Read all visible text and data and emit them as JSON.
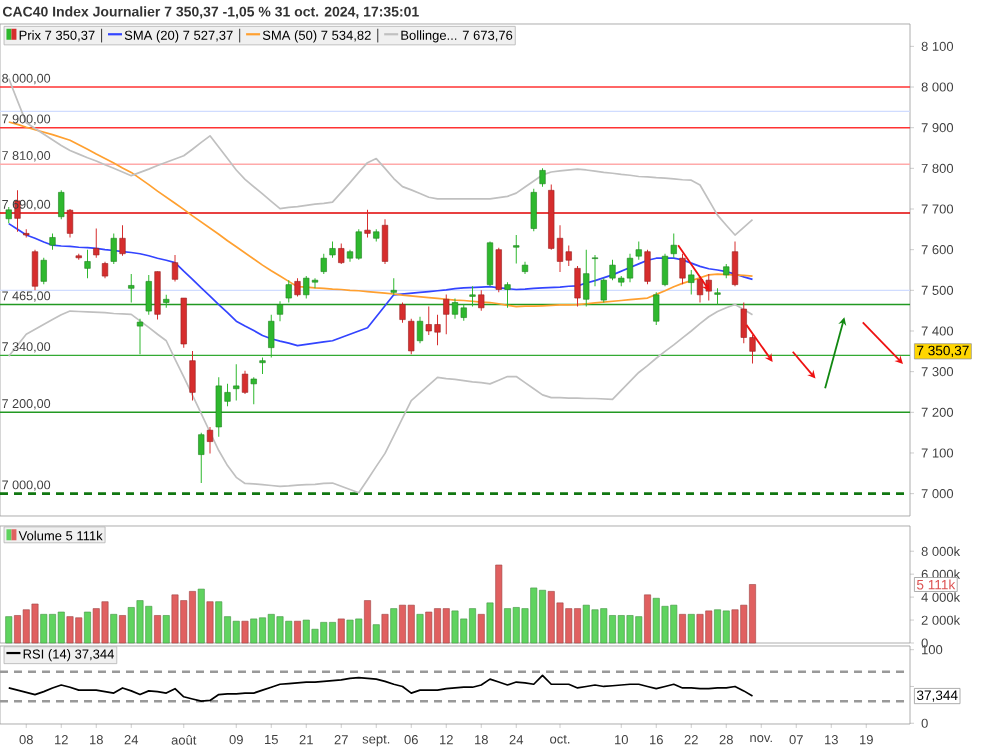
{
  "chart_data": [
    {
      "type": "candlestick",
      "title": "CAC40 Index Journalier 7 350,37 -1,05 % 31 oct. 2024, 17:35:01",
      "legend": "top left",
      "tick_labels": "y",
      "ylim": [
        6945,
        8155
      ],
      "yticks": [
        {
          "value": 7000,
          "label": "7 000"
        },
        {
          "value": 7100,
          "label": "7 100"
        },
        {
          "value": 7200,
          "label": "7 200"
        },
        {
          "value": 7300,
          "label": "7 300"
        },
        {
          "value": 7400,
          "label": "7 400"
        },
        {
          "value": 7500,
          "label": "7 500"
        },
        {
          "value": 7600,
          "label": "7 600"
        },
        {
          "value": 7700,
          "label": "7 700"
        },
        {
          "value": 7800,
          "label": "7 800"
        },
        {
          "value": 7900,
          "label": "7 900"
        },
        {
          "value": 8000,
          "label": "8 000"
        },
        {
          "value": 8100,
          "label": "8 100"
        }
      ],
      "categories": [
        null,
        null,
        null,
        null,
        null,
        null,
        null,
        null,
        null,
        null,
        null,
        null,
        null,
        null,
        null,
        null,
        null,
        null,
        null,
        null,
        null,
        null,
        null,
        null,
        null,
        null,
        null,
        null,
        null,
        null,
        null,
        null,
        null,
        null,
        null,
        null,
        null,
        null,
        null,
        null,
        null,
        null,
        null,
        null,
        null,
        null,
        null,
        null,
        null,
        null,
        null,
        null,
        null,
        null,
        null,
        null,
        null,
        null,
        null,
        null,
        null,
        null,
        null,
        null,
        null,
        null,
        null,
        null,
        null,
        null,
        null,
        null,
        null,
        null,
        null,
        null,
        null,
        null,
        null,
        null,
        null,
        null,
        null,
        null,
        null,
        null,
        null,
        null,
        null,
        null,
        null,
        null,
        null,
        null,
        null,
        null,
        null,
        null,
        null,
        null,
        null,
        null,
        null
      ],
      "series": [
        {
          "type": "candlestick",
          "name": "Prix 7 350,37",
          "ohlc": [
            [
              7676,
              7705,
              7665,
              7698
            ],
            [
              7720,
              7746,
              7644,
              7677
            ],
            [
              7640,
              7650,
              7630,
              7636
            ],
            [
              7595,
              7600,
              7500,
              7510
            ],
            [
              7522,
              7580,
              7515,
              7574
            ],
            [
              7611,
              7640,
              7600,
              7630
            ],
            [
              7681,
              7746,
              7675,
              7741
            ],
            [
              7697,
              7700,
              7630,
              7640
            ],
            [
              7585,
              7590,
              7575,
              7580
            ],
            [
              7554,
              7600,
              7530,
              7571
            ],
            [
              7603,
              7652,
              7580,
              7587
            ],
            [
              7566,
              7570,
              7530,
              7535
            ],
            [
              7571,
              7640,
              7565,
              7628
            ],
            [
              7628,
              7660,
              7585,
              7590
            ],
            [
              7505,
              7540,
              7470,
              7512
            ],
            [
              7412,
              7430,
              7343,
              7422
            ],
            [
              7449,
              7538,
              7440,
              7522
            ],
            [
              7546,
              7546,
              7428,
              7441
            ],
            [
              7470,
              7489,
              7457,
              7478
            ],
            [
              7568,
              7587,
              7522,
              7527
            ],
            [
              7481,
              7481,
              7359,
              7368
            ],
            [
              7327,
              7351,
              7229,
              7249
            ],
            [
              7096,
              7150,
              7026,
              7145
            ],
            [
              7156,
              7164,
              7099,
              7128
            ],
            [
              7164,
              7286,
              7140,
              7265
            ],
            [
              7227,
              7270,
              7215,
              7249
            ],
            [
              7258,
              7318,
              7229,
              7265
            ],
            [
              7294,
              7302,
              7245,
              7249
            ],
            [
              7270,
              7286,
              7220,
              7282
            ],
            [
              7322,
              7335,
              7294,
              7327
            ],
            [
              7359,
              7440,
              7335,
              7424
            ],
            [
              7441,
              7473,
              7424,
              7465
            ],
            [
              7481,
              7525,
              7470,
              7514
            ],
            [
              7522,
              7530,
              7485,
              7489
            ],
            [
              7489,
              7535,
              7480,
              7530
            ],
            [
              7520,
              7530,
              7505,
              7525
            ],
            [
              7546,
              7590,
              7540,
              7579
            ],
            [
              7587,
              7620,
              7580,
              7603
            ],
            [
              7603,
              7615,
              7565,
              7568
            ],
            [
              7579,
              7600,
              7570,
              7595
            ],
            [
              7579,
              7650,
              7575,
              7644
            ],
            [
              7648,
              7698,
              7630,
              7640
            ],
            [
              7628,
              7650,
              7620,
              7644
            ],
            [
              7660,
              7675,
              7565,
              7571
            ],
            [
              7495,
              7530,
              7489,
              7500
            ],
            [
              7465,
              7470,
              7420,
              7428
            ],
            [
              7424,
              7430,
              7343,
              7351
            ],
            [
              7376,
              7435,
              7370,
              7424
            ],
            [
              7416,
              7460,
              7390,
              7400
            ],
            [
              7416,
              7440,
              7365,
              7397
            ],
            [
              7478,
              7490,
              7392,
              7441
            ],
            [
              7441,
              7480,
              7430,
              7470
            ],
            [
              7433,
              7465,
              7425,
              7457
            ],
            [
              7485,
              7510,
              7460,
              7489
            ],
            [
              7489,
              7500,
              7450,
              7457
            ],
            [
              7514,
              7620,
              7510,
              7617
            ],
            [
              7600,
              7605,
              7495,
              7502
            ],
            [
              7502,
              7520,
              7457,
              7514
            ],
            [
              7606,
              7636,
              7566,
              7610
            ],
            [
              7546,
              7570,
              7540,
              7562
            ],
            [
              7652,
              7750,
              7645,
              7741
            ],
            [
              7762,
              7800,
              7755,
              7795
            ],
            [
              7746,
              7760,
              7600,
              7603
            ],
            [
              7628,
              7660,
              7545,
              7571
            ],
            [
              7595,
              7610,
              7560,
              7574
            ],
            [
              7554,
              7560,
              7460,
              7481
            ],
            [
              7478,
              7600,
              7460,
              7541
            ],
            [
              7578,
              7587,
              7510,
              7580
            ],
            [
              7476,
              7530,
              7470,
              7525
            ],
            [
              7530,
              7575,
              7525,
              7562
            ],
            [
              7520,
              7535,
              7510,
              7530
            ],
            [
              7530,
              7590,
              7520,
              7579
            ],
            [
              7584,
              7620,
              7575,
              7600
            ],
            [
              7595,
              7600,
              7515,
              7522
            ],
            [
              7424,
              7495,
              7415,
              7489
            ],
            [
              7514,
              7590,
              7510,
              7584
            ],
            [
              7590,
              7640,
              7580,
              7611
            ],
            [
              7579,
              7590,
              7515,
              7530
            ],
            [
              7519,
              7550,
              7490,
              7538
            ],
            [
              7527,
              7535,
              7470,
              7489
            ],
            [
              7525,
              7540,
              7475,
              7498
            ],
            [
              7490,
              7505,
              7465,
              7494
            ],
            [
              7538,
              7565,
              7530,
              7558
            ],
            [
              7595,
              7620,
              7510,
              7514
            ],
            [
              7454,
              7470,
              7370,
              7384
            ],
            [
              7384,
              7390,
              7320,
              7350
            ],
            null,
            null,
            null,
            null,
            null,
            null,
            null,
            null,
            null,
            null,
            null,
            null,
            null,
            null,
            null,
            null,
            null
          ],
          "colors": [
            "#2eb82e",
            "#d62d2d",
            "#d62d2d",
            "#d62d2d",
            "#2eb82e",
            "#2eb82e",
            "#2eb82e",
            "#d62d2d",
            "#d62d2d",
            "#2eb82e",
            "#d62d2d",
            "#d62d2d",
            "#2eb82e",
            "#d62d2d",
            "#2eb82e",
            "#2eb82e",
            "#2eb82e",
            "#d62d2d",
            "#2eb82e",
            "#d62d2d",
            "#d62d2d",
            "#d62d2d",
            "#2eb82e",
            "#d62d2d",
            "#2eb82e",
            "#2eb82e",
            "#2eb82e",
            "#d62d2d",
            "#2eb82e",
            "#2eb82e",
            "#2eb82e",
            "#2eb82e",
            "#2eb82e",
            "#d62d2d",
            "#2eb82e",
            "#2eb82e",
            "#2eb82e",
            "#2eb82e",
            "#d62d2d",
            "#2eb82e",
            "#2eb82e",
            "#d62d2d",
            "#2eb82e",
            "#d62d2d",
            "#2eb82e",
            "#d62d2d",
            "#d62d2d",
            "#2eb82e",
            "#d62d2d",
            "#d62d2d",
            "#d62d2d",
            "#2eb82e",
            "#2eb82e",
            "#2eb82e",
            "#d62d2d",
            "#2eb82e",
            "#d62d2d",
            "#2eb82e",
            "#2eb82e",
            "#2eb82e",
            "#2eb82e",
            "#2eb82e",
            "#d62d2d",
            "#d62d2d",
            "#d62d2d",
            "#d62d2d",
            "#2eb82e",
            "#2eb82e",
            "#2eb82e",
            "#2eb82e",
            "#2eb82e",
            "#2eb82e",
            "#2eb82e",
            "#d62d2d",
            "#2eb82e",
            "#2eb82e",
            "#2eb82e",
            "#d62d2d",
            "#2eb82e",
            "#d62d2d",
            "#d62d2d",
            "#2eb82e",
            "#2eb82e",
            "#d62d2d",
            "#d62d2d",
            "#d62d2d",
            null,
            null,
            null,
            null,
            null,
            null,
            null,
            null,
            null,
            null,
            null,
            null,
            null,
            null,
            null,
            null,
            null
          ]
        },
        {
          "type": "line",
          "name": "SMA (20) 7 527,37",
          "color": "#3344ff",
          "values": [
            7664,
            7650,
            7636,
            7628,
            7619,
            7611,
            7609,
            7608,
            7606,
            7605,
            7603,
            7600,
            7598,
            7595,
            7593,
            7590,
            7585,
            7579,
            7574,
            7568,
            7547,
            7527,
            7506,
            7486,
            7465,
            7445,
            7424,
            7412,
            7401,
            7389,
            7381,
            7375,
            7370,
            7364,
            7367,
            7370,
            7373,
            7376,
            7384,
            7392,
            7400,
            7408,
            7435,
            7462,
            7489,
            7491,
            7493,
            7495,
            7497,
            7499,
            7501,
            7504,
            7506,
            7507,
            7508,
            7509,
            7506,
            7504,
            7502,
            7503,
            7505,
            7506,
            7507,
            7508,
            7510,
            7511,
            7518,
            7524,
            7531,
            7538,
            7547,
            7556,
            7565,
            7574,
            7579,
            7579,
            7579,
            7575,
            7567,
            7559,
            7553,
            7550,
            7546,
            7540,
            7533,
            7527,
            null,
            null,
            null,
            null,
            null,
            null,
            null,
            null,
            null,
            null,
            null,
            null,
            null,
            null,
            null,
            null,
            null
          ]
        },
        {
          "type": "line",
          "name": "SMA (50) 7 534,82",
          "color": "#ffa030",
          "values": [
            7914,
            7908,
            7901,
            7895,
            7889,
            7883,
            7876,
            7869,
            7858,
            7847,
            7835,
            7824,
            7813,
            7801,
            7790,
            7775,
            7760,
            7744,
            7729,
            7714,
            7699,
            7683,
            7668,
            7653,
            7638,
            7622,
            7607,
            7592,
            7577,
            7562,
            7548,
            7535,
            7522,
            7509,
            7508,
            7506,
            7505,
            7503,
            7502,
            7500,
            7499,
            7497,
            7495,
            7493,
            7491,
            7488,
            7486,
            7484,
            7482,
            7480,
            7478,
            7476,
            7475,
            7473,
            7471,
            7470,
            7467,
            7463,
            7460,
            7461,
            7461,
            7462,
            7463,
            7464,
            7464,
            7465,
            7467,
            7469,
            7471,
            7473,
            7475,
            7477,
            7479,
            7481,
            7490,
            7499,
            7509,
            7517,
            7524,
            7531,
            7538,
            7540,
            7539,
            7538,
            7537,
            7535,
            null,
            null,
            null,
            null,
            null,
            null,
            null,
            null,
            null,
            null,
            null,
            null,
            null,
            null,
            null,
            null,
            null
          ]
        },
        {
          "type": "line",
          "name": "Bollinge... 7 673,76",
          "color": "#c0c0c0",
          "values": [
            8021,
            7966,
            7912,
            7898,
            7884,
            7870,
            7856,
            7844,
            7835,
            7826,
            7818,
            7809,
            7800,
            7791,
            7782,
            7790,
            7798,
            7807,
            7815,
            7823,
            7831,
            7847,
            7864,
            7880,
            7852,
            7824,
            7796,
            7773,
            7755,
            7737,
            7719,
            7701,
            7704,
            7706,
            7709,
            7712,
            7714,
            7717,
            7741,
            7765,
            7790,
            7814,
            7824,
            7800,
            7775,
            7755,
            7747,
            7738,
            7729,
            7725,
            7725,
            7725,
            7725,
            7725,
            7725,
            7725,
            7728,
            7731,
            7739,
            7754,
            7769,
            7784,
            7791,
            7794,
            7796,
            7798,
            7796,
            7793,
            7790,
            7788,
            7785,
            7783,
            7780,
            7779,
            7777,
            7776,
            7774,
            7772,
            7771,
            7759,
            7722,
            7685,
            7660,
            7636,
            7655,
            7674,
            null,
            null,
            null,
            null,
            null,
            null,
            null,
            null,
            null,
            null,
            null,
            null,
            null,
            null,
            null,
            null,
            null
          ]
        },
        {
          "type": "line",
          "color": "#c0c0c0",
          "values": [
            7338,
            7365,
            7392,
            7404,
            7416,
            7428,
            7440,
            7449,
            7448,
            7447,
            7446,
            7445,
            7443,
            7442,
            7441,
            7425,
            7409,
            7392,
            7376,
            7331,
            7287,
            7242,
            7197,
            7151,
            7106,
            7069,
            7040,
            7025,
            7024,
            7022,
            7020,
            7018,
            7019,
            7021,
            7022,
            7023,
            7025,
            7026,
            7018,
            7010,
            7002,
            7034,
            7067,
            7099,
            7142,
            7186,
            7229,
            7248,
            7267,
            7286,
            7283,
            7281,
            7278,
            7275,
            7273,
            7270,
            7279,
            7288,
            7288,
            7273,
            7258,
            7243,
            7236,
            7236,
            7235,
            7235,
            7234,
            7234,
            7233,
            7232,
            7254,
            7276,
            7298,
            7315,
            7333,
            7350,
            7366,
            7383,
            7400,
            7418,
            7435,
            7448,
            7457,
            7465,
            7453,
            7440,
            null,
            null,
            null,
            null,
            null,
            null,
            null,
            null,
            null,
            null,
            null,
            null,
            null,
            null,
            null,
            null,
            null
          ]
        }
      ],
      "ref_lines": [
        {
          "axis": "y",
          "value": 8000,
          "label": "8 000,00",
          "color": "#ff3333"
        },
        {
          "axis": "y",
          "value": 7940,
          "color": "#d0dcff"
        },
        {
          "axis": "y",
          "value": 7900,
          "label": "7 900,00",
          "color": "#ff3333"
        },
        {
          "axis": "y",
          "value": 7810,
          "label": "7 810,00",
          "color": "#ffaaaa"
        },
        {
          "axis": "y",
          "value": 7690,
          "label": "7 690,00",
          "color": "#e00000"
        },
        {
          "axis": "y",
          "value": 7500,
          "color": "#d0dcff"
        },
        {
          "axis": "y",
          "value": 7465,
          "label": "7 465,00",
          "color": "#229922"
        },
        {
          "axis": "y",
          "value": 7340,
          "label": "7 340,00",
          "color": "#33aa33"
        },
        {
          "axis": "y",
          "value": 7200,
          "label": "7 200,00",
          "color": "#229922"
        },
        {
          "axis": "y",
          "value": 7000,
          "label": "7 000,00",
          "color": "#117711",
          "line_style": "dashed"
        }
      ],
      "annotations": [
        "7 350,37"
      ]
    },
    {
      "type": "bar",
      "legend": "top left",
      "tick_labels": "y",
      "ylim": [
        0,
        10200
      ],
      "yticks": [
        0,
        {
          "value": 2000,
          "label": "2 000k"
        },
        {
          "value": 4000,
          "label": "4 000k"
        },
        {
          "value": 6000,
          "label": "6 000k"
        },
        {
          "value": 8000,
          "label": "8 000k"
        }
      ],
      "categories": [
        null,
        null,
        null,
        null,
        null,
        null,
        null,
        null,
        null,
        null,
        null,
        null,
        null,
        null,
        null,
        null,
        null,
        null,
        null,
        null,
        null,
        null,
        null,
        null,
        null,
        null,
        null,
        null,
        null,
        null,
        null,
        null,
        null,
        null,
        null,
        null,
        null,
        null,
        null,
        null,
        null,
        null,
        null,
        null,
        null,
        null,
        null,
        null,
        null,
        null,
        null,
        null,
        null,
        null,
        null,
        null,
        null,
        null,
        null,
        null,
        null,
        null,
        null,
        null,
        null,
        null,
        null,
        null,
        null,
        null,
        null,
        null,
        null,
        null,
        null,
        null,
        null,
        null,
        null,
        null,
        null,
        null,
        null,
        null,
        null,
        null,
        null,
        null,
        null,
        null,
        null,
        null,
        null,
        null,
        null,
        null,
        null,
        null,
        null,
        null,
        null,
        null,
        null
      ],
      "series": [
        {
          "name": "Volume 5 111k",
          "values": [
            2300,
            2400,
            2900,
            3400,
            2500,
            2500,
            2700,
            2300,
            2200,
            2700,
            3000,
            3600,
            2500,
            2400,
            3100,
            3700,
            3200,
            2400,
            2400,
            4200,
            3700,
            4500,
            4700,
            3600,
            3600,
            2300,
            1900,
            1900,
            2100,
            2200,
            2500,
            2300,
            1900,
            1900,
            2000,
            1200,
            1800,
            1800,
            2100,
            2000,
            2100,
            3700,
            1600,
            2500,
            3000,
            3300,
            3300,
            2500,
            2700,
            3000,
            3000,
            2800,
            2100,
            3000,
            2500,
            3500,
            6800,
            3000,
            3100,
            3000,
            4800,
            4600,
            4500,
            3500,
            3000,
            3000,
            3300,
            2900,
            3000,
            2400,
            2400,
            2400,
            2300,
            4200,
            3900,
            3200,
            3300,
            2500,
            2500,
            2500,
            2800,
            2900,
            2800,
            2900,
            3300,
            5100,
            null,
            null,
            null,
            null,
            null,
            null,
            null,
            null,
            null,
            null,
            null,
            null,
            null,
            null,
            null,
            null,
            null
          ],
          "colors": [
            "#5fd35f",
            "#e06060",
            "#e06060",
            "#e06060",
            "#5fd35f",
            "#5fd35f",
            "#5fd35f",
            "#e06060",
            "#e06060",
            "#5fd35f",
            "#e06060",
            "#e06060",
            "#5fd35f",
            "#e06060",
            "#5fd35f",
            "#5fd35f",
            "#5fd35f",
            "#e06060",
            "#5fd35f",
            "#e06060",
            "#e06060",
            "#e06060",
            "#5fd35f",
            "#e06060",
            "#5fd35f",
            "#5fd35f",
            "#5fd35f",
            "#e06060",
            "#5fd35f",
            "#5fd35f",
            "#5fd35f",
            "#5fd35f",
            "#5fd35f",
            "#e06060",
            "#5fd35f",
            "#5fd35f",
            "#5fd35f",
            "#5fd35f",
            "#e06060",
            "#5fd35f",
            "#5fd35f",
            "#e06060",
            "#5fd35f",
            "#e06060",
            "#5fd35f",
            "#e06060",
            "#e06060",
            "#5fd35f",
            "#e06060",
            "#e06060",
            "#e06060",
            "#5fd35f",
            "#5fd35f",
            "#5fd35f",
            "#e06060",
            "#5fd35f",
            "#e06060",
            "#5fd35f",
            "#5fd35f",
            "#5fd35f",
            "#5fd35f",
            "#5fd35f",
            "#e06060",
            "#e06060",
            "#e06060",
            "#e06060",
            "#5fd35f",
            "#5fd35f",
            "#5fd35f",
            "#5fd35f",
            "#5fd35f",
            "#5fd35f",
            "#5fd35f",
            "#e06060",
            "#5fd35f",
            "#5fd35f",
            "#5fd35f",
            "#e06060",
            "#5fd35f",
            "#e06060",
            "#e06060",
            "#5fd35f",
            "#5fd35f",
            "#e06060",
            "#e06060",
            "#e06060",
            null,
            null,
            null,
            null,
            null,
            null,
            null,
            null,
            null,
            null,
            null,
            null,
            null,
            null,
            null,
            null,
            null
          ]
        }
      ],
      "annotations": [
        "5 111k"
      ]
    },
    {
      "type": "line",
      "legend": "top left",
      "ylim": [
        -1,
        105
      ],
      "yticks": [
        0,
        {
          "value": 50,
          "label": null
        },
        100
      ],
      "categories": [
        null,
        null,
        "08",
        null,
        null,
        null,
        "12",
        null,
        null,
        null,
        "18",
        null,
        null,
        null,
        "24",
        null,
        null,
        null,
        null,
        null,
        "août",
        null,
        null,
        null,
        null,
        null,
        "09",
        null,
        null,
        null,
        "15",
        null,
        null,
        null,
        "21",
        null,
        null,
        null,
        "27",
        null,
        null,
        null,
        "sept.",
        null,
        null,
        null,
        "06",
        null,
        null,
        null,
        "12",
        null,
        null,
        null,
        "18",
        null,
        null,
        null,
        "24",
        null,
        null,
        null,
        null,
        "oct.",
        null,
        null,
        null,
        null,
        null,
        null,
        "10",
        null,
        null,
        null,
        "16",
        null,
        null,
        null,
        "22",
        null,
        null,
        null,
        "28",
        null,
        null,
        null,
        "nov.",
        null,
        null,
        null,
        "07",
        null,
        null,
        null,
        "13",
        null,
        null,
        null,
        "19",
        null,
        null,
        null,
        null
      ],
      "series": [
        {
          "name": "RSI (14) 37,344",
          "color": "#000000",
          "values": [
            48,
            45,
            42,
            39,
            43,
            48,
            52,
            49,
            45,
            45,
            45,
            43,
            41,
            48,
            44,
            39,
            44,
            43,
            41,
            47,
            36,
            33,
            30,
            31,
            39,
            40,
            40,
            41,
            41,
            45,
            49,
            53,
            54,
            55,
            56,
            56,
            57,
            58,
            59,
            61,
            62,
            61,
            60,
            57,
            53,
            50,
            41,
            45,
            45,
            45,
            47,
            48,
            49,
            49,
            52,
            60,
            56,
            52,
            56,
            55,
            53,
            65,
            53,
            53,
            53,
            48,
            50,
            52,
            50,
            51,
            52,
            53,
            53,
            50,
            47,
            50,
            53,
            48,
            48,
            47,
            47,
            48,
            48,
            50,
            44,
            37,
            null,
            null,
            null,
            null,
            null,
            null,
            null,
            null,
            null,
            null,
            null,
            null,
            null,
            null,
            null,
            null,
            null
          ]
        }
      ],
      "ref_lines": [
        {
          "axis": "y",
          "value": 70,
          "color": "#999999",
          "line_style": "dashed"
        },
        {
          "axis": "y",
          "value": 30,
          "color": "#999999",
          "line_style": "dashed"
        }
      ],
      "annotations": [
        "37,344"
      ]
    }
  ]
}
